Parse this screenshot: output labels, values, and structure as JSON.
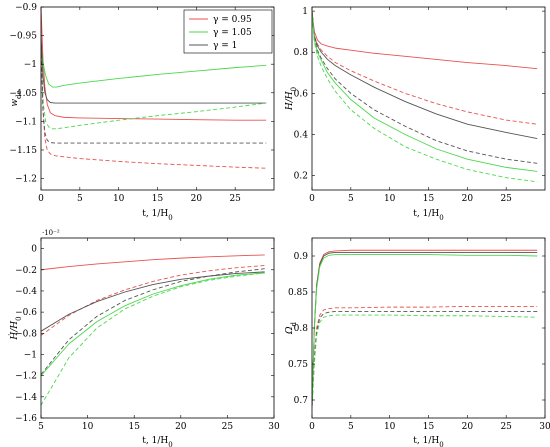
{
  "chart_data": [
    {
      "type": "line",
      "ylabel": "w_{de}",
      "xlabel": "t, 1/H_0",
      "xlim": [
        0,
        30
      ],
      "ylim": [
        -1.22,
        -0.9
      ],
      "xticks": [
        0,
        5,
        10,
        15,
        20,
        25
      ],
      "yticks": [
        -1.2,
        -1.15,
        -1.1,
        -1.05,
        -1.0,
        -0.95,
        -0.9
      ],
      "yticklabels": [
        "−1.2",
        "−1.15",
        "−1.1",
        "−1.05",
        "−1",
        "−0.95",
        "−0.9"
      ],
      "legend": {
        "placement": "top-right",
        "entries": [
          {
            "label": "γ = 0.95",
            "color": "#e8524f"
          },
          {
            "label": "γ = 1.05",
            "color": "#4cd84c"
          },
          {
            "label": "γ = 1",
            "color": "#555555"
          }
        ]
      },
      "series": [
        {
          "color": "#e8524f",
          "dash": "solid",
          "x": [
            0,
            0.25,
            0.5,
            0.8,
            1.2,
            1.8,
            3,
            5,
            10,
            15,
            20,
            25,
            29
          ],
          "y": [
            -0.9,
            -0.99,
            -1.04,
            -1.07,
            -1.085,
            -1.09,
            -1.093,
            -1.094,
            -1.095,
            -1.096,
            -1.097,
            -1.098,
            -1.098
          ]
        },
        {
          "color": "#4cd84c",
          "dash": "solid",
          "x": [
            0,
            0.3,
            0.6,
            1.0,
            1.5,
            2.0,
            3,
            5,
            10,
            15,
            20,
            25,
            29
          ],
          "y": [
            -0.97,
            -1.0,
            -1.02,
            -1.035,
            -1.04,
            -1.04,
            -1.037,
            -1.033,
            -1.025,
            -1.018,
            -1.012,
            -1.006,
            -1.002
          ]
        },
        {
          "color": "#555555",
          "dash": "solid",
          "x": [
            0,
            0.25,
            0.5,
            0.8,
            1.2,
            1.8,
            3,
            5,
            10,
            15,
            20,
            25,
            29
          ],
          "y": [
            -0.95,
            -1.02,
            -1.05,
            -1.062,
            -1.067,
            -1.068,
            -1.068,
            -1.068,
            -1.068,
            -1.068,
            -1.068,
            -1.068,
            -1.068
          ]
        },
        {
          "color": "#e8524f",
          "dash": "dashed",
          "x": [
            0,
            0.25,
            0.5,
            0.8,
            1.2,
            1.8,
            3,
            5,
            10,
            15,
            20,
            25,
            29
          ],
          "y": [
            -0.95,
            -1.08,
            -1.13,
            -1.15,
            -1.157,
            -1.16,
            -1.162,
            -1.165,
            -1.17,
            -1.174,
            -1.177,
            -1.18,
            -1.182
          ]
        },
        {
          "color": "#4cd84c",
          "dash": "dashed",
          "x": [
            0,
            0.3,
            0.6,
            1.0,
            1.5,
            2.0,
            3,
            5,
            10,
            15,
            20,
            25,
            29
          ],
          "y": [
            -0.97,
            -1.07,
            -1.1,
            -1.11,
            -1.113,
            -1.113,
            -1.111,
            -1.107,
            -1.098,
            -1.09,
            -1.083,
            -1.075,
            -1.068
          ]
        },
        {
          "color": "#555555",
          "dash": "dashed",
          "x": [
            0,
            0.25,
            0.5,
            0.8,
            1.2,
            1.8,
            3,
            5,
            10,
            15,
            20,
            25,
            29
          ],
          "y": [
            -0.96,
            -1.08,
            -1.12,
            -1.133,
            -1.137,
            -1.138,
            -1.138,
            -1.138,
            -1.138,
            -1.138,
            -1.138,
            -1.138,
            -1.138
          ]
        }
      ]
    },
    {
      "type": "line",
      "ylabel": "H/H_0",
      "xlabel": "t, 1/H_0",
      "xlim": [
        0,
        30
      ],
      "ylim": [
        0.13,
        1.02
      ],
      "xticks": [
        0,
        5,
        10,
        15,
        20,
        25
      ],
      "yticks": [
        0.2,
        0.4,
        0.6,
        0.8,
        1
      ],
      "yticklabels": [
        "0.2",
        "0.4",
        "0.6",
        "0.8",
        "1"
      ],
      "series": [
        {
          "color": "#e8524f",
          "dash": "solid",
          "x": [
            0,
            0.3,
            0.7,
            1.2,
            2,
            3,
            5,
            8,
            12,
            16,
            20,
            25,
            29
          ],
          "y": [
            1.0,
            0.9,
            0.86,
            0.84,
            0.83,
            0.82,
            0.81,
            0.795,
            0.78,
            0.765,
            0.75,
            0.735,
            0.72
          ]
        },
        {
          "color": "#e8524f",
          "dash": "dashed",
          "x": [
            0,
            0.3,
            0.7,
            1.2,
            2,
            3,
            5,
            8,
            12,
            16,
            20,
            25,
            29
          ],
          "y": [
            1.0,
            0.88,
            0.84,
            0.81,
            0.78,
            0.75,
            0.71,
            0.66,
            0.6,
            0.55,
            0.51,
            0.47,
            0.45
          ]
        },
        {
          "color": "#555555",
          "dash": "solid",
          "x": [
            0,
            0.3,
            0.7,
            1.2,
            2,
            3,
            5,
            8,
            12,
            16,
            20,
            25,
            29
          ],
          "y": [
            1.0,
            0.88,
            0.83,
            0.8,
            0.765,
            0.735,
            0.69,
            0.63,
            0.56,
            0.5,
            0.45,
            0.41,
            0.38
          ]
        },
        {
          "color": "#555555",
          "dash": "dashed",
          "x": [
            0,
            0.3,
            0.7,
            1.2,
            2,
            3,
            5,
            8,
            12,
            16,
            20,
            25,
            29
          ],
          "y": [
            1.0,
            0.87,
            0.81,
            0.77,
            0.72,
            0.67,
            0.6,
            0.52,
            0.44,
            0.37,
            0.32,
            0.28,
            0.26
          ]
        },
        {
          "color": "#4cd84c",
          "dash": "solid",
          "x": [
            0,
            0.3,
            0.7,
            1.2,
            2,
            3,
            5,
            8,
            12,
            16,
            20,
            25,
            29
          ],
          "y": [
            1.0,
            0.86,
            0.8,
            0.76,
            0.7,
            0.65,
            0.57,
            0.48,
            0.4,
            0.33,
            0.28,
            0.24,
            0.22
          ]
        },
        {
          "color": "#4cd84c",
          "dash": "dashed",
          "x": [
            0,
            0.3,
            0.7,
            1.2,
            2,
            3,
            5,
            8,
            12,
            16,
            20,
            25,
            29
          ],
          "y": [
            1.0,
            0.85,
            0.78,
            0.73,
            0.67,
            0.61,
            0.52,
            0.43,
            0.34,
            0.28,
            0.23,
            0.19,
            0.17
          ]
        }
      ]
    },
    {
      "type": "line",
      "ylabel": "Ḣ/H_0",
      "xlabel": "t, 1/H_0",
      "exponent": "·10⁻²",
      "xlim": [
        5,
        30
      ],
      "ylim": [
        -1.6,
        0.1
      ],
      "xticks": [
        5,
        10,
        15,
        20,
        25,
        30
      ],
      "yticks": [
        -1.6,
        -1.4,
        -1.2,
        -1.0,
        -0.8,
        -0.6,
        -0.4,
        -0.2,
        0
      ],
      "yticklabels": [
        "−1.6",
        "−1.4",
        "−1.2",
        "−1",
        "−0.8",
        "−0.6",
        "−0.4",
        "−0.2",
        "0"
      ],
      "series": [
        {
          "color": "#e8524f",
          "dash": "solid",
          "x": [
            5,
            8,
            11,
            14,
            17,
            20,
            23,
            26,
            29
          ],
          "y": [
            -0.2,
            -0.17,
            -0.145,
            -0.125,
            -0.105,
            -0.09,
            -0.078,
            -0.068,
            -0.06
          ]
        },
        {
          "color": "#e8524f",
          "dash": "dashed",
          "x": [
            5,
            8,
            11,
            14,
            17,
            20,
            23,
            26,
            29
          ],
          "y": [
            -0.82,
            -0.63,
            -0.49,
            -0.39,
            -0.31,
            -0.25,
            -0.21,
            -0.18,
            -0.16
          ]
        },
        {
          "color": "#555555",
          "dash": "solid",
          "x": [
            5,
            8,
            11,
            14,
            17,
            20,
            23,
            26,
            29
          ],
          "y": [
            -0.78,
            -0.62,
            -0.5,
            -0.41,
            -0.34,
            -0.29,
            -0.26,
            -0.235,
            -0.22
          ]
        },
        {
          "color": "#555555",
          "dash": "dashed",
          "x": [
            5,
            8,
            11,
            14,
            17,
            20,
            23,
            26,
            29
          ],
          "y": [
            -1.19,
            -0.86,
            -0.64,
            -0.49,
            -0.39,
            -0.31,
            -0.26,
            -0.22,
            -0.19
          ]
        },
        {
          "color": "#4cd84c",
          "dash": "solid",
          "x": [
            5,
            8,
            11,
            14,
            17,
            20,
            23,
            26,
            29
          ],
          "y": [
            -1.2,
            -0.9,
            -0.69,
            -0.54,
            -0.43,
            -0.35,
            -0.29,
            -0.25,
            -0.23
          ]
        },
        {
          "color": "#4cd84c",
          "dash": "dashed",
          "x": [
            5,
            8,
            11,
            14,
            17,
            20,
            23,
            26,
            29
          ],
          "y": [
            -1.48,
            -1.03,
            -0.75,
            -0.57,
            -0.45,
            -0.36,
            -0.3,
            -0.26,
            -0.23
          ]
        }
      ]
    },
    {
      "type": "line",
      "ylabel": "Ω_d",
      "xlabel": "t, 1/H_0",
      "xlim": [
        0,
        30
      ],
      "ylim": [
        0.675,
        0.925
      ],
      "xticks": [
        0,
        5,
        10,
        15,
        20,
        25,
        30
      ],
      "yticks": [
        0.7,
        0.75,
        0.8,
        0.85,
        0.9
      ],
      "yticklabels": [
        "0.7",
        "0.75",
        "0.8",
        "0.85",
        "0.9"
      ],
      "series": [
        {
          "color": "#e8524f",
          "dash": "solid",
          "x": [
            0,
            0.3,
            0.6,
            1.0,
            1.5,
            2.2,
            3,
            5,
            10,
            15,
            20,
            25,
            29
          ],
          "y": [
            0.69,
            0.8,
            0.86,
            0.89,
            0.902,
            0.906,
            0.907,
            0.908,
            0.908,
            0.908,
            0.908,
            0.908,
            0.908
          ]
        },
        {
          "color": "#555555",
          "dash": "solid",
          "x": [
            0,
            0.3,
            0.6,
            1.0,
            1.5,
            2.2,
            3,
            5,
            10,
            15,
            20,
            25,
            29
          ],
          "y": [
            0.69,
            0.8,
            0.86,
            0.888,
            0.9,
            0.904,
            0.905,
            0.905,
            0.905,
            0.905,
            0.905,
            0.905,
            0.905
          ]
        },
        {
          "color": "#4cd84c",
          "dash": "solid",
          "x": [
            0,
            0.3,
            0.6,
            1.0,
            1.5,
            2.2,
            3,
            5,
            10,
            15,
            20,
            25,
            29
          ],
          "y": [
            0.69,
            0.8,
            0.855,
            0.885,
            0.897,
            0.901,
            0.902,
            0.902,
            0.902,
            0.902,
            0.901,
            0.901,
            0.9
          ]
        },
        {
          "color": "#e8524f",
          "dash": "dashed",
          "x": [
            0,
            0.3,
            0.6,
            1.0,
            1.5,
            2.2,
            3,
            5,
            10,
            15,
            20,
            25,
            29
          ],
          "y": [
            0.69,
            0.76,
            0.8,
            0.818,
            0.825,
            0.827,
            0.828,
            0.828,
            0.829,
            0.829,
            0.83,
            0.83,
            0.83
          ]
        },
        {
          "color": "#555555",
          "dash": "dashed",
          "x": [
            0,
            0.3,
            0.6,
            1.0,
            1.5,
            2.2,
            3,
            5,
            10,
            15,
            20,
            25,
            29
          ],
          "y": [
            0.69,
            0.755,
            0.795,
            0.814,
            0.82,
            0.822,
            0.823,
            0.823,
            0.823,
            0.823,
            0.823,
            0.823,
            0.823
          ]
        },
        {
          "color": "#4cd84c",
          "dash": "dashed",
          "x": [
            0,
            0.3,
            0.6,
            1.0,
            1.5,
            2.2,
            3,
            5,
            10,
            15,
            20,
            25,
            29
          ],
          "y": [
            0.69,
            0.75,
            0.79,
            0.808,
            0.815,
            0.817,
            0.818,
            0.818,
            0.818,
            0.817,
            0.817,
            0.816,
            0.815
          ]
        }
      ]
    }
  ]
}
